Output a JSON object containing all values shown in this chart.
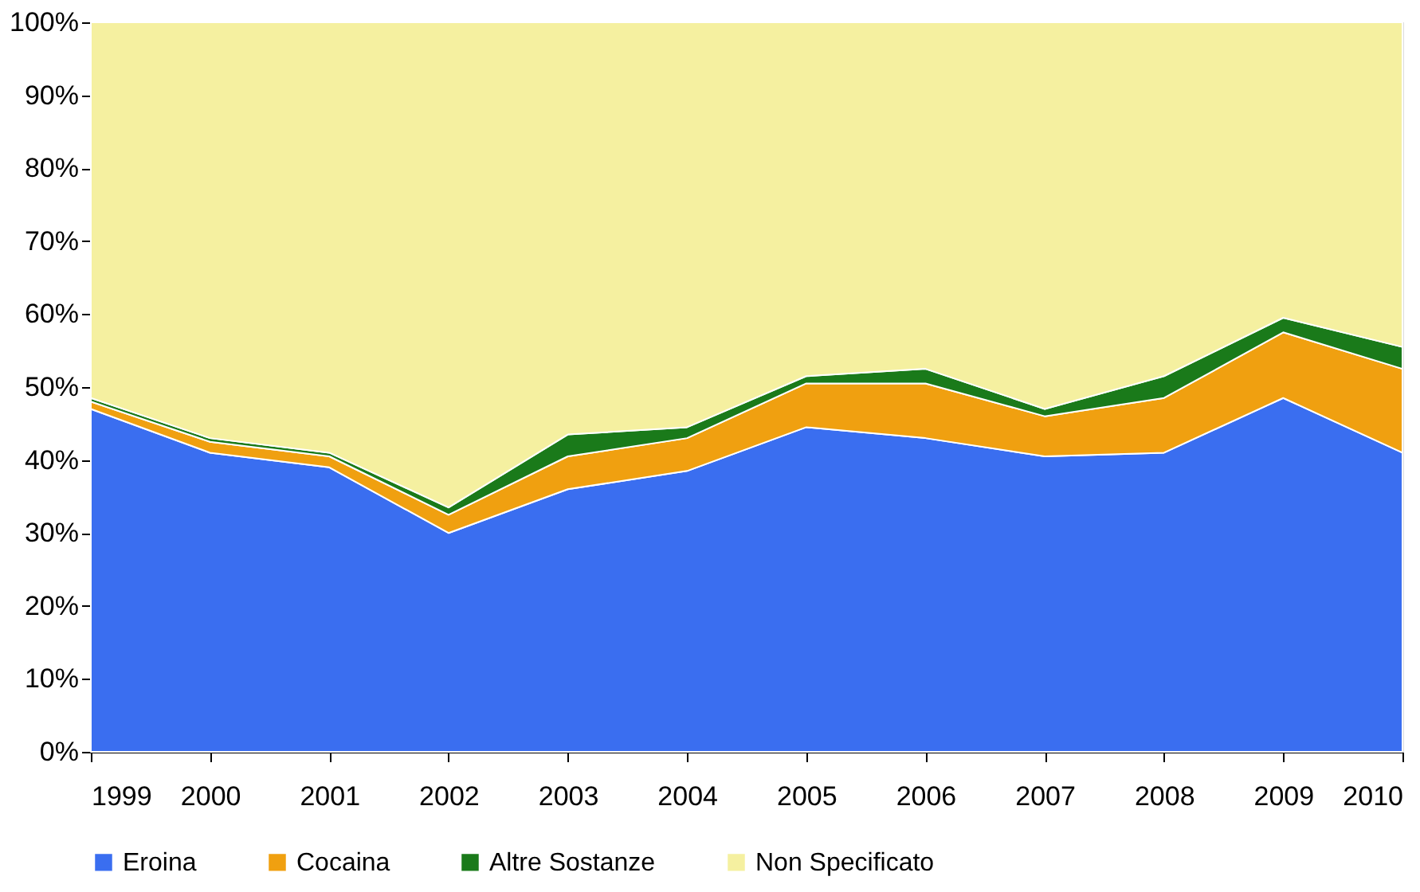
{
  "chart_data": {
    "type": "area",
    "stacked": true,
    "x": [
      1999,
      2000,
      2001,
      2002,
      2003,
      2004,
      2005,
      2006,
      2007,
      2008,
      2009,
      2010
    ],
    "xlim": [
      1999,
      2010
    ],
    "xticks": [
      1999,
      2000,
      2001,
      2002,
      2003,
      2004,
      2005,
      2006,
      2007,
      2008,
      2009,
      2010
    ],
    "ylim": [
      0,
      100
    ],
    "yticks": [
      {
        "value": 0,
        "label": "0%"
      },
      {
        "value": 10,
        "label": "10%"
      },
      {
        "value": 20,
        "label": "20%"
      },
      {
        "value": 30,
        "label": "30%"
      },
      {
        "value": 40,
        "label": "40%"
      },
      {
        "value": 50,
        "label": "50%"
      },
      {
        "value": 60,
        "label": "60%"
      },
      {
        "value": 70,
        "label": "70%"
      },
      {
        "value": 80,
        "label": "80%"
      },
      {
        "value": 90,
        "label": "90%"
      },
      {
        "value": 100,
        "label": "100%"
      }
    ],
    "legend": "bottom",
    "series": [
      {
        "name": "Eroina",
        "color": "#3a6ef0",
        "values": [
          47,
          41,
          39,
          30,
          36,
          38.5,
          44.5,
          43,
          40.5,
          41,
          48.5,
          41
        ]
      },
      {
        "name": "Cocaina",
        "color": "#f0a010",
        "values": [
          1,
          1.5,
          1.5,
          2.5,
          4.5,
          4.5,
          6,
          7.5,
          5.5,
          7.5,
          9,
          11.5
        ]
      },
      {
        "name": "Altre Sostanze",
        "color": "#1a7a1a",
        "values": [
          0.5,
          0.5,
          0.5,
          1,
          3,
          1.5,
          1,
          2,
          1,
          3,
          2,
          3
        ]
      },
      {
        "name": "Non Specificato",
        "color": "#f5f0a0",
        "values": [
          51.5,
          57,
          59,
          66.5,
          56.5,
          55.5,
          48.5,
          47.5,
          53,
          48.5,
          40.5,
          44.5
        ]
      }
    ]
  }
}
